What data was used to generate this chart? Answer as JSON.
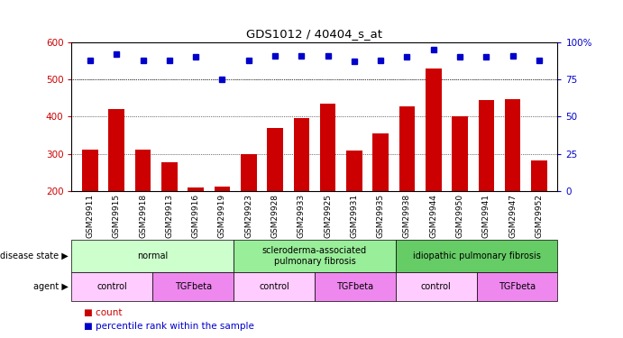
{
  "title": "GDS1012 / 40404_s_at",
  "samples": [
    "GSM29911",
    "GSM29915",
    "GSM29918",
    "GSM29913",
    "GSM29916",
    "GSM29919",
    "GSM29923",
    "GSM29928",
    "GSM29933",
    "GSM29925",
    "GSM29931",
    "GSM29935",
    "GSM29938",
    "GSM29944",
    "GSM29950",
    "GSM29941",
    "GSM29947",
    "GSM29952"
  ],
  "counts": [
    310,
    420,
    310,
    278,
    210,
    212,
    300,
    370,
    395,
    435,
    308,
    355,
    427,
    530,
    400,
    445,
    447,
    282
  ],
  "percentile_ranks": [
    88,
    92,
    88,
    88,
    90,
    75,
    88,
    91,
    91,
    91,
    87,
    88,
    90,
    95,
    90,
    90,
    91,
    88
  ],
  "ylim_left": [
    200,
    600
  ],
  "ylim_right": [
    0,
    100
  ],
  "bar_color": "#cc0000",
  "dot_color": "#0000cc",
  "background_color": "#ffffff",
  "disease_states": [
    {
      "label": "normal",
      "start": 0,
      "end": 6,
      "color": "#ccffcc"
    },
    {
      "label": "scleroderma-associated\npulmonary fibrosis",
      "start": 6,
      "end": 12,
      "color": "#99ee99"
    },
    {
      "label": "idiopathic pulmonary fibrosis",
      "start": 12,
      "end": 18,
      "color": "#66cc66"
    }
  ],
  "agents": [
    {
      "label": "control",
      "start": 0,
      "end": 3,
      "color": "#ffccff"
    },
    {
      "label": "TGFbeta",
      "start": 3,
      "end": 6,
      "color": "#ee88ee"
    },
    {
      "label": "control",
      "start": 6,
      "end": 9,
      "color": "#ffccff"
    },
    {
      "label": "TGFbeta",
      "start": 9,
      "end": 12,
      "color": "#ee88ee"
    },
    {
      "label": "control",
      "start": 12,
      "end": 15,
      "color": "#ffccff"
    },
    {
      "label": "TGFbeta",
      "start": 15,
      "end": 18,
      "color": "#ee88ee"
    }
  ],
  "yticks_left": [
    200,
    300,
    400,
    500,
    600
  ],
  "yticks_right": [
    0,
    25,
    50,
    75,
    100
  ],
  "grid_lines": [
    300,
    400,
    500
  ],
  "left_tick_color": "#cc0000",
  "right_tick_color": "#0000cc"
}
